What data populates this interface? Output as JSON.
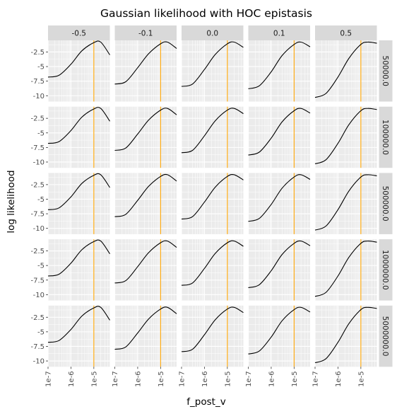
{
  "chart_data": {
    "type": "line",
    "title": "Gaussian likelihood with HOC epistasis",
    "xlabel": "f_post_v",
    "ylabel": "log likelihood",
    "x_scale": "log10",
    "xlim": [
      1e-07,
      5e-05
    ],
    "ylim": [
      -11,
      -0.5
    ],
    "x_ticks": [
      1e-07,
      1e-06,
      1e-05
    ],
    "x_tick_labels": [
      "1e-7",
      "1e-6",
      "1e-5"
    ],
    "y_ticks": [
      -2.5,
      -5,
      -7.5,
      -10
    ],
    "y_tick_labels": [
      "-2.5",
      "-5",
      "-7.5",
      "-10"
    ],
    "facet_cols": [
      "-0.5",
      "-0.1",
      "0.0",
      "0.1",
      "0.5"
    ],
    "facet_rows": [
      "50000.0",
      "100000.0",
      "500000.0",
      "1000000.0",
      "5000000.0"
    ],
    "vline_color": "#ffa500",
    "line_color": "#000000",
    "grid": true,
    "panel_curves": [
      {
        "col_label": "-0.5",
        "vline_x": 1e-05,
        "x": [
          1e-07,
          3e-07,
          1e-06,
          3e-06,
          1e-05,
          2e-05,
          5e-05
        ],
        "y": [
          -6.8,
          -6.5,
          -4.6,
          -2.3,
          -0.9,
          -0.8,
          -3.0
        ]
      },
      {
        "col_label": "-0.1",
        "vline_x": 1e-05,
        "x": [
          1e-07,
          3e-07,
          1e-06,
          3e-06,
          1e-05,
          2e-05,
          5e-05
        ],
        "y": [
          -8.0,
          -7.6,
          -5.2,
          -2.8,
          -1.1,
          -0.8,
          -1.9
        ]
      },
      {
        "col_label": "0.0",
        "vline_x": 1e-05,
        "x": [
          1e-07,
          3e-07,
          1e-06,
          3e-06,
          1e-05,
          2e-05,
          5e-05
        ],
        "y": [
          -8.4,
          -8.0,
          -5.5,
          -2.9,
          -1.1,
          -0.8,
          -1.7
        ]
      },
      {
        "col_label": "0.1",
        "vline_x": 1e-05,
        "x": [
          1e-07,
          3e-07,
          1e-06,
          3e-06,
          1e-05,
          2e-05,
          5e-05
        ],
        "y": [
          -8.8,
          -8.3,
          -5.9,
          -3.1,
          -1.2,
          -0.8,
          -1.6
        ]
      },
      {
        "col_label": "0.5",
        "vline_x": 1e-05,
        "x": [
          1e-07,
          3e-07,
          1e-06,
          3e-06,
          1e-05,
          2e-05,
          5e-05
        ],
        "y": [
          -10.3,
          -9.6,
          -6.8,
          -3.6,
          -1.2,
          -0.8,
          -1.0
        ]
      }
    ]
  }
}
